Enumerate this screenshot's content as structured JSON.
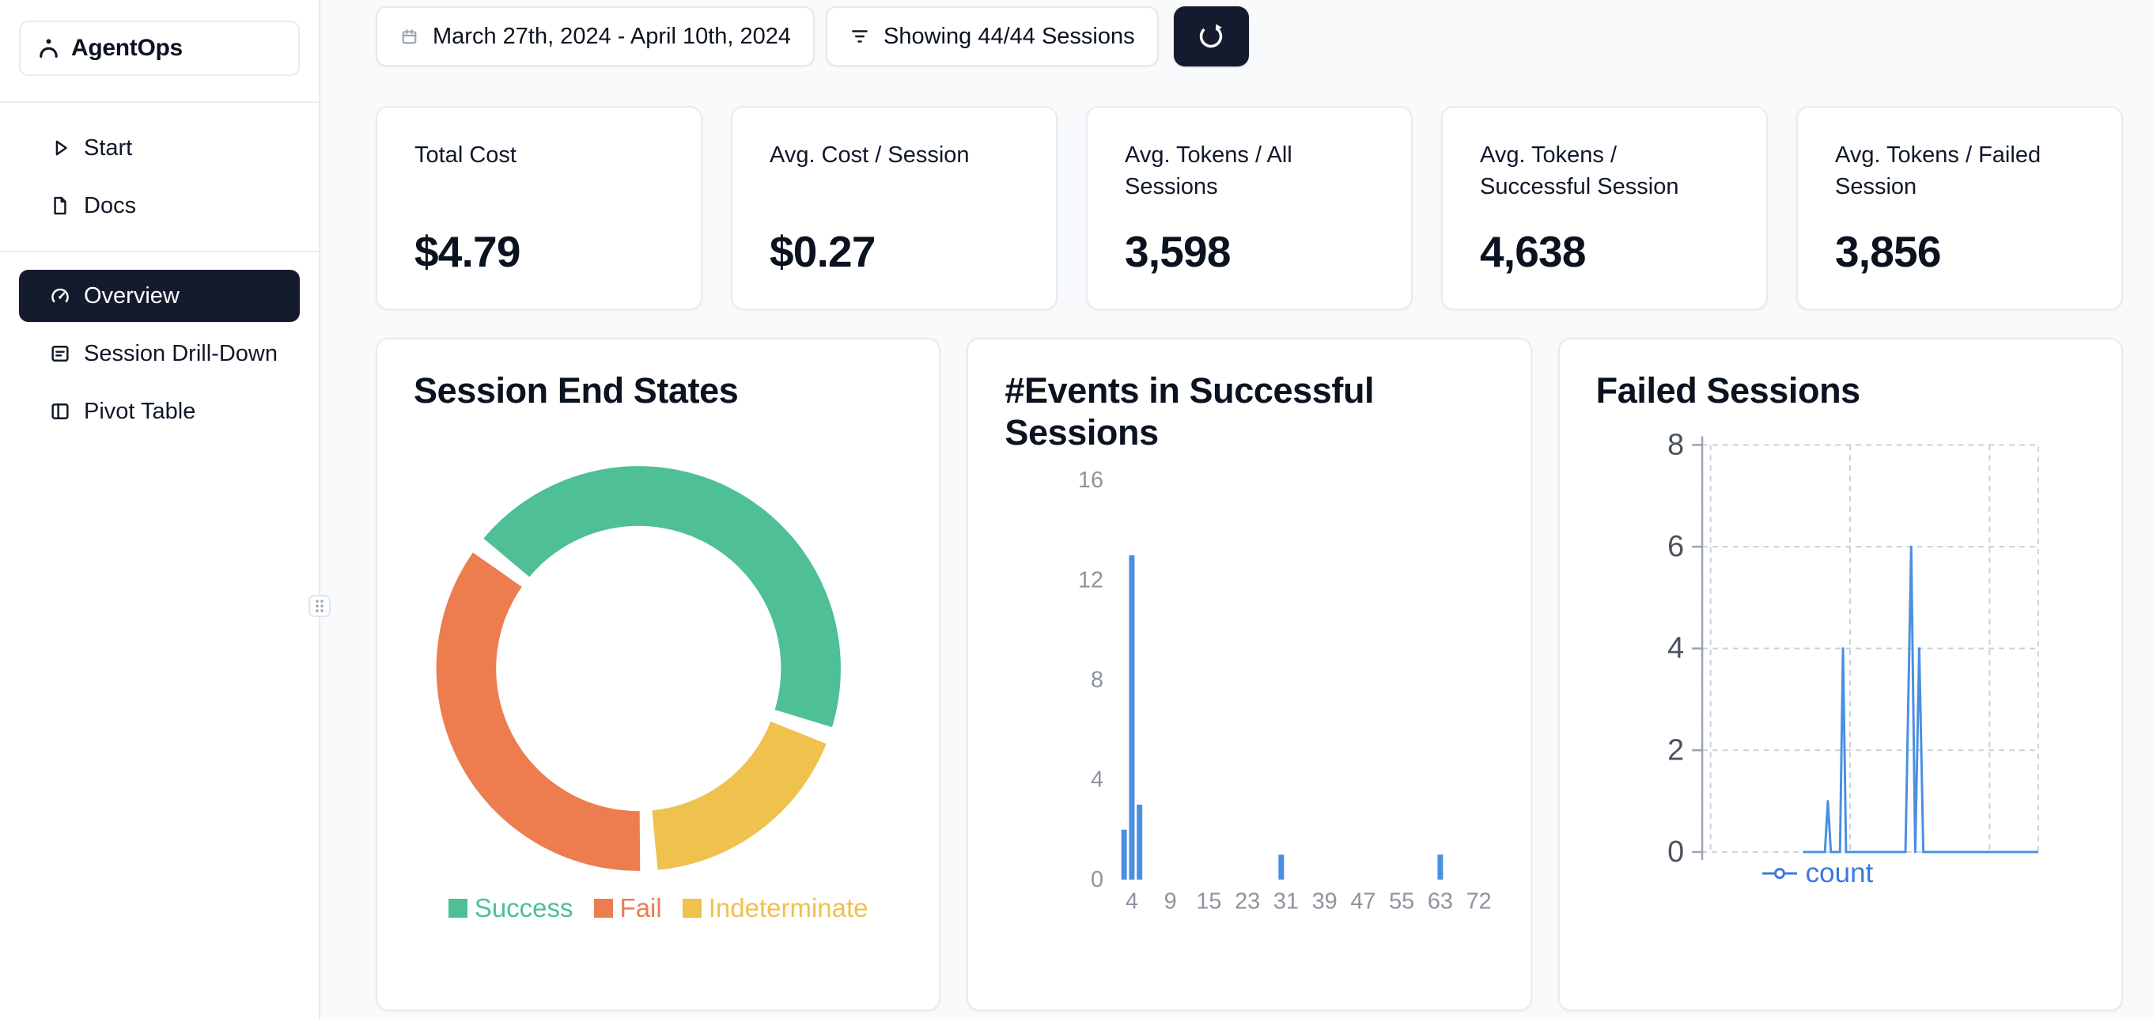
{
  "app": {
    "name": "AgentOps"
  },
  "sidebar": {
    "nav_top": [
      {
        "label": "Start",
        "icon": "play-icon"
      },
      {
        "label": "Docs",
        "icon": "document-icon"
      }
    ],
    "nav_main": [
      {
        "label": "Overview",
        "icon": "gauge-icon",
        "active": true
      },
      {
        "label": "Session Drill-Down",
        "icon": "list-icon",
        "active": false
      },
      {
        "label": "Pivot Table",
        "icon": "table-icon",
        "active": false
      }
    ]
  },
  "topbar": {
    "date_range": "March 27th, 2024 - April 10th, 2024",
    "sessions_filter": "Showing 44/44 Sessions"
  },
  "stats": [
    {
      "label": "Total Cost",
      "value": "$4.79"
    },
    {
      "label": "Avg. Cost / Session",
      "value": "$0.27"
    },
    {
      "label": "Avg. Tokens / All Sessions",
      "value": "3,598"
    },
    {
      "label": "Avg. Tokens / Successful Session",
      "value": "4,638"
    },
    {
      "label": "Avg. Tokens / Failed Session",
      "value": "3,856"
    }
  ],
  "chart_data": [
    {
      "type": "pie",
      "variant": "donut",
      "title": "Session End States",
      "labels": [
        "Success",
        "Fail",
        "Indeterminate"
      ],
      "values": [
        20,
        16,
        8
      ],
      "colors": [
        "#4FBF96",
        "#ED7D4F",
        "#EFC14D"
      ],
      "clockwise_draw_order": [
        0,
        2,
        1
      ],
      "legend_position": "bottom"
    },
    {
      "type": "bar",
      "title": "#Events in Successful Sessions",
      "x_tick_labels": [
        "4",
        "9",
        "15",
        "23",
        "31",
        "39",
        "47",
        "55",
        "63",
        "72"
      ],
      "y_ticks": [
        0,
        4,
        8,
        12,
        16
      ],
      "ylim": [
        0,
        16
      ],
      "bars": [
        {
          "x": 3,
          "count": 2
        },
        {
          "x": 4,
          "count": 13
        },
        {
          "x": 5,
          "count": 3
        },
        {
          "x": 30,
          "count": 1
        },
        {
          "x": 63,
          "count": 1
        }
      ],
      "bar_color": "#4A8FE2",
      "axis_label_color": "#8D949E"
    },
    {
      "type": "line",
      "title": "Failed Sessions",
      "y_ticks": [
        0,
        2,
        4,
        6,
        8
      ],
      "ylim": [
        0,
        8
      ],
      "xlim": [
        0,
        100
      ],
      "grid": "dashed",
      "x_gridline_positions": [
        2.5,
        44,
        85.5
      ],
      "series": [
        {
          "name": "count",
          "color": "#4A8FE2",
          "points": [
            [
              30,
              0
            ],
            [
              36.5,
              0
            ],
            [
              37.4,
              1
            ],
            [
              38.3,
              0
            ],
            [
              41,
              0
            ],
            [
              41.9,
              4
            ],
            [
              42.8,
              0
            ],
            [
              60.5,
              0
            ],
            [
              62.2,
              6
            ],
            [
              63.4,
              0
            ],
            [
              64.6,
              4
            ],
            [
              65.8,
              0
            ],
            [
              100,
              0
            ]
          ]
        }
      ],
      "legend": [
        "count"
      ],
      "legend_position": "bottom"
    }
  ],
  "colors": {
    "accent_dark": "#151B2E",
    "success": "#4FBF96",
    "fail": "#ED7D4F",
    "indeterminate": "#EFC14D",
    "chart_blue": "#4A8FE2",
    "legend_blue": "#3C79DD",
    "page_bg": "#F8FAFC"
  }
}
